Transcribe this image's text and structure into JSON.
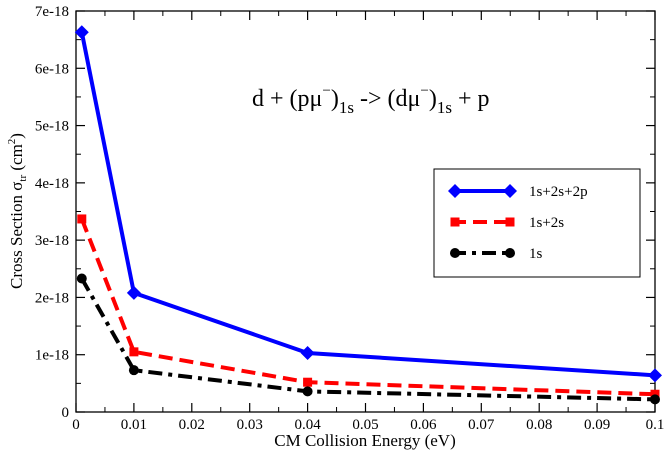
{
  "chart_data": {
    "type": "line",
    "title": "",
    "xlabel": "CM Collision Energy (eV)",
    "ylabel": {
      "main": "Cross Section σ",
      "sub": "tr",
      "unit_open": " (cm",
      "unit_sup": "2",
      "unit_close": ")"
    },
    "xlim": [
      0,
      0.1
    ],
    "ylim": [
      0,
      7e-18
    ],
    "x_ticks": [
      0,
      0.01,
      0.02,
      0.03,
      0.04,
      0.05,
      0.06,
      0.07,
      0.08,
      0.09,
      0.1
    ],
    "x_tick_labels": [
      "0",
      "0.01",
      "0.02",
      "0.03",
      "0.04",
      "0.05",
      "0.06",
      "0.07",
      "0.08",
      "0.09",
      "0.1"
    ],
    "y_ticks": [
      0,
      1e-18,
      2e-18,
      3e-18,
      4e-18,
      5e-18,
      6e-18,
      7e-18
    ],
    "y_tick_labels": [
      "0",
      "1e-18",
      "2e-18",
      "3e-18",
      "4e-18",
      "5e-18",
      "6e-18",
      "7e-18"
    ],
    "grid": false,
    "legend_position": "right",
    "series": [
      {
        "name": "1s+2s+2p",
        "color": "#0000ff",
        "line_style": "solid",
        "marker": "diamond",
        "x": [
          0.001,
          0.01,
          0.04,
          0.1
        ],
        "values": [
          6.63e-18,
          2.08e-18,
          1.03e-18,
          6.4e-19
        ]
      },
      {
        "name": "1s+2s",
        "color": "#ff0000",
        "line_style": "dashed",
        "marker": "square",
        "x": [
          0.001,
          0.01,
          0.04,
          0.1
        ],
        "values": [
          3.37e-18,
          1.05e-18,
          5.2e-19,
          3.1e-19
        ]
      },
      {
        "name": "1s",
        "color": "#000000",
        "line_style": "dash-dot",
        "marker": "circle",
        "x": [
          0.001,
          0.01,
          0.04,
          0.1
        ],
        "values": [
          2.33e-18,
          7.3e-19,
          3.6e-19,
          2.2e-19
        ]
      }
    ],
    "annotation": {
      "segments": [
        {
          "text": "d + (pμ",
          "style": "normal"
        },
        {
          "text": "−",
          "style": "sup"
        },
        {
          "text": ")",
          "style": "normal"
        },
        {
          "text": "1s",
          "style": "sub"
        },
        {
          "text": " -> (dμ",
          "style": "normal"
        },
        {
          "text": "−",
          "style": "sup"
        },
        {
          "text": ")",
          "style": "normal"
        },
        {
          "text": "1s",
          "style": "sub"
        },
        {
          "text": " + p",
          "style": "normal"
        }
      ]
    }
  }
}
